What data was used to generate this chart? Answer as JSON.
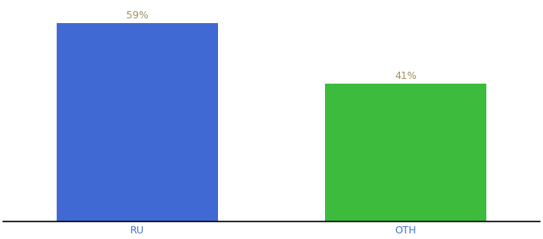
{
  "categories": [
    "RU",
    "OTH"
  ],
  "values": [
    59,
    41
  ],
  "bar_colors": [
    "#4169d4",
    "#3dbb3d"
  ],
  "label_colors": [
    "#a09060",
    "#a09060"
  ],
  "bar_width": 0.6,
  "xlim": [
    -0.5,
    1.5
  ],
  "ylim": [
    0,
    65
  ],
  "background_color": "#ffffff",
  "label_fontsize": 9,
  "tick_fontsize": 9,
  "tick_color": "#4472c4",
  "value_labels": [
    "59%",
    "41%"
  ]
}
